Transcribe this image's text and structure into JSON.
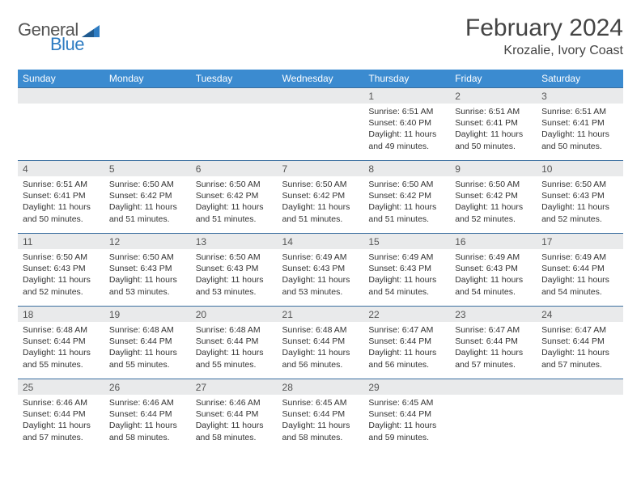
{
  "brand": {
    "part1": "General",
    "part2": "Blue"
  },
  "header": {
    "month": "February 2024",
    "location": "Krozalie, Ivory Coast"
  },
  "weekdays": [
    "Sunday",
    "Monday",
    "Tuesday",
    "Wednesday",
    "Thursday",
    "Friday",
    "Saturday"
  ],
  "colors": {
    "header_bg": "#3b8bd0",
    "daynum_bg": "#e9eaeb",
    "cell_border": "#3b6fa0",
    "text": "#333333",
    "brand_blue": "#2e7cc2"
  },
  "days": {
    "1": {
      "sunrise": "6:51 AM",
      "sunset": "6:40 PM",
      "dl_h": 11,
      "dl_m": 49
    },
    "2": {
      "sunrise": "6:51 AM",
      "sunset": "6:41 PM",
      "dl_h": 11,
      "dl_m": 50
    },
    "3": {
      "sunrise": "6:51 AM",
      "sunset": "6:41 PM",
      "dl_h": 11,
      "dl_m": 50
    },
    "4": {
      "sunrise": "6:51 AM",
      "sunset": "6:41 PM",
      "dl_h": 11,
      "dl_m": 50
    },
    "5": {
      "sunrise": "6:50 AM",
      "sunset": "6:42 PM",
      "dl_h": 11,
      "dl_m": 51
    },
    "6": {
      "sunrise": "6:50 AM",
      "sunset": "6:42 PM",
      "dl_h": 11,
      "dl_m": 51
    },
    "7": {
      "sunrise": "6:50 AM",
      "sunset": "6:42 PM",
      "dl_h": 11,
      "dl_m": 51
    },
    "8": {
      "sunrise": "6:50 AM",
      "sunset": "6:42 PM",
      "dl_h": 11,
      "dl_m": 51
    },
    "9": {
      "sunrise": "6:50 AM",
      "sunset": "6:42 PM",
      "dl_h": 11,
      "dl_m": 52
    },
    "10": {
      "sunrise": "6:50 AM",
      "sunset": "6:43 PM",
      "dl_h": 11,
      "dl_m": 52
    },
    "11": {
      "sunrise": "6:50 AM",
      "sunset": "6:43 PM",
      "dl_h": 11,
      "dl_m": 52
    },
    "12": {
      "sunrise": "6:50 AM",
      "sunset": "6:43 PM",
      "dl_h": 11,
      "dl_m": 53
    },
    "13": {
      "sunrise": "6:50 AM",
      "sunset": "6:43 PM",
      "dl_h": 11,
      "dl_m": 53
    },
    "14": {
      "sunrise": "6:49 AM",
      "sunset": "6:43 PM",
      "dl_h": 11,
      "dl_m": 53
    },
    "15": {
      "sunrise": "6:49 AM",
      "sunset": "6:43 PM",
      "dl_h": 11,
      "dl_m": 54
    },
    "16": {
      "sunrise": "6:49 AM",
      "sunset": "6:43 PM",
      "dl_h": 11,
      "dl_m": 54
    },
    "17": {
      "sunrise": "6:49 AM",
      "sunset": "6:44 PM",
      "dl_h": 11,
      "dl_m": 54
    },
    "18": {
      "sunrise": "6:48 AM",
      "sunset": "6:44 PM",
      "dl_h": 11,
      "dl_m": 55
    },
    "19": {
      "sunrise": "6:48 AM",
      "sunset": "6:44 PM",
      "dl_h": 11,
      "dl_m": 55
    },
    "20": {
      "sunrise": "6:48 AM",
      "sunset": "6:44 PM",
      "dl_h": 11,
      "dl_m": 55
    },
    "21": {
      "sunrise": "6:48 AM",
      "sunset": "6:44 PM",
      "dl_h": 11,
      "dl_m": 56
    },
    "22": {
      "sunrise": "6:47 AM",
      "sunset": "6:44 PM",
      "dl_h": 11,
      "dl_m": 56
    },
    "23": {
      "sunrise": "6:47 AM",
      "sunset": "6:44 PM",
      "dl_h": 11,
      "dl_m": 57
    },
    "24": {
      "sunrise": "6:47 AM",
      "sunset": "6:44 PM",
      "dl_h": 11,
      "dl_m": 57
    },
    "25": {
      "sunrise": "6:46 AM",
      "sunset": "6:44 PM",
      "dl_h": 11,
      "dl_m": 57
    },
    "26": {
      "sunrise": "6:46 AM",
      "sunset": "6:44 PM",
      "dl_h": 11,
      "dl_m": 58
    },
    "27": {
      "sunrise": "6:46 AM",
      "sunset": "6:44 PM",
      "dl_h": 11,
      "dl_m": 58
    },
    "28": {
      "sunrise": "6:45 AM",
      "sunset": "6:44 PM",
      "dl_h": 11,
      "dl_m": 58
    },
    "29": {
      "sunrise": "6:45 AM",
      "sunset": "6:44 PM",
      "dl_h": 11,
      "dl_m": 59
    }
  },
  "labels": {
    "sunrise_prefix": "Sunrise: ",
    "sunset_prefix": "Sunset: ",
    "daylight_prefix": "Daylight: ",
    "hours_word": " hours",
    "and_word": "and ",
    "minutes_word": " minutes."
  },
  "grid": [
    [
      null,
      null,
      null,
      null,
      1,
      2,
      3
    ],
    [
      4,
      5,
      6,
      7,
      8,
      9,
      10
    ],
    [
      11,
      12,
      13,
      14,
      15,
      16,
      17
    ],
    [
      18,
      19,
      20,
      21,
      22,
      23,
      24
    ],
    [
      25,
      26,
      27,
      28,
      29,
      null,
      null
    ]
  ]
}
